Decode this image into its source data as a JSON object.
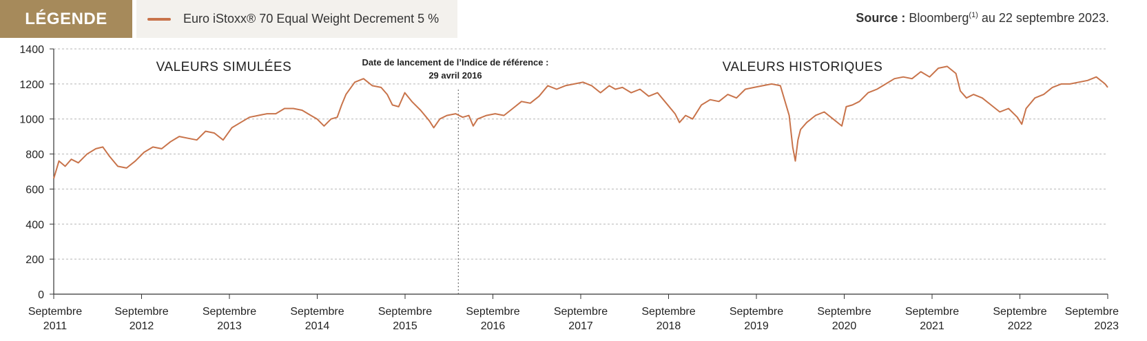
{
  "legend": {
    "heading": "LÉGENDE",
    "color": "#c8734a"
  },
  "source": {
    "label": "Source :",
    "text_before": " Bloomberg",
    "footnote": "(1)",
    "text_after": " au 22 septembre 2023."
  },
  "chart_data": {
    "type": "line",
    "x_tick_labels": [
      [
        "Septembre",
        "2011"
      ],
      [
        "Septembre",
        "2012"
      ],
      [
        "Septembre",
        "2013"
      ],
      [
        "Septembre",
        "2014"
      ],
      [
        "Septembre",
        "2015"
      ],
      [
        "Septembre",
        "2016"
      ],
      [
        "Septembre",
        "2017"
      ],
      [
        "Septembre",
        "2018"
      ],
      [
        "Septembre",
        "2019"
      ],
      [
        "Septembre",
        "2020"
      ],
      [
        "Septembre",
        "2021"
      ],
      [
        "Septembre",
        "2022"
      ],
      [
        "Septembre",
        "2023"
      ]
    ],
    "xlim": [
      2011.72,
      2023.73
    ],
    "ylim": [
      0,
      1400
    ],
    "y_ticks": [
      0,
      200,
      400,
      600,
      800,
      1000,
      1200,
      1400
    ],
    "grid": true,
    "series": [
      {
        "name": "Euro iStoxx® 70 Equal Weight Decrement 5 %",
        "color": "#c8734a",
        "x": [
          2011.72,
          2011.78,
          2011.85,
          2011.92,
          2012.0,
          2012.1,
          2012.2,
          2012.28,
          2012.35,
          2012.45,
          2012.55,
          2012.65,
          2012.75,
          2012.85,
          2012.95,
          2013.05,
          2013.15,
          2013.25,
          2013.35,
          2013.45,
          2013.55,
          2013.65,
          2013.75,
          2013.85,
          2013.95,
          2014.05,
          2014.15,
          2014.25,
          2014.35,
          2014.45,
          2014.55,
          2014.65,
          2014.72,
          2014.8,
          2014.88,
          2014.95,
          2015.0,
          2015.05,
          2015.15,
          2015.25,
          2015.35,
          2015.45,
          2015.52,
          2015.58,
          2015.65,
          2015.72,
          2015.8,
          2015.9,
          2016.0,
          2016.05,
          2016.12,
          2016.2,
          2016.3,
          2016.38,
          2016.45,
          2016.5,
          2016.55,
          2016.65,
          2016.75,
          2016.85,
          2016.95,
          2017.05,
          2017.15,
          2017.25,
          2017.35,
          2017.45,
          2017.55,
          2017.65,
          2017.75,
          2017.85,
          2017.95,
          2018.05,
          2018.12,
          2018.2,
          2018.3,
          2018.4,
          2018.5,
          2018.6,
          2018.7,
          2018.8,
          2018.85,
          2018.92,
          2019.0,
          2019.1,
          2019.2,
          2019.3,
          2019.4,
          2019.5,
          2019.6,
          2019.7,
          2019.8,
          2019.9,
          2020.0,
          2020.1,
          2020.14,
          2020.17,
          2020.2,
          2020.23,
          2020.3,
          2020.4,
          2020.5,
          2020.6,
          2020.7,
          2020.75,
          2020.82,
          2020.9,
          2021.0,
          2021.1,
          2021.2,
          2021.3,
          2021.4,
          2021.5,
          2021.6,
          2021.7,
          2021.8,
          2021.9,
          2022.0,
          2022.05,
          2022.12,
          2022.2,
          2022.3,
          2022.4,
          2022.5,
          2022.6,
          2022.7,
          2022.75,
          2022.8,
          2022.9,
          2023.0,
          2023.1,
          2023.2,
          2023.3,
          2023.4,
          2023.5,
          2023.6,
          2023.7,
          2023.73
        ],
        "values": [
          660,
          760,
          730,
          770,
          750,
          800,
          830,
          840,
          790,
          730,
          720,
          760,
          810,
          840,
          830,
          870,
          900,
          890,
          880,
          930,
          920,
          880,
          950,
          980,
          1010,
          1020,
          1030,
          1030,
          1060,
          1060,
          1050,
          1020,
          1000,
          960,
          1000,
          1010,
          1080,
          1140,
          1210,
          1230,
          1190,
          1180,
          1140,
          1080,
          1070,
          1150,
          1100,
          1050,
          990,
          950,
          1000,
          1020,
          1030,
          1010,
          1020,
          960,
          1000,
          1020,
          1030,
          1020,
          1060,
          1100,
          1090,
          1130,
          1190,
          1170,
          1190,
          1200,
          1210,
          1190,
          1150,
          1190,
          1170,
          1180,
          1150,
          1170,
          1130,
          1150,
          1090,
          1030,
          980,
          1020,
          1000,
          1080,
          1110,
          1100,
          1140,
          1120,
          1170,
          1180,
          1190,
          1200,
          1190,
          1020,
          840,
          760,
          880,
          940,
          980,
          1020,
          1040,
          1000,
          960,
          1070,
          1080,
          1100,
          1150,
          1170,
          1200,
          1230,
          1240,
          1230,
          1270,
          1240,
          1290,
          1300,
          1260,
          1160,
          1120,
          1140,
          1120,
          1080,
          1040,
          1060,
          1010,
          970,
          1060,
          1120,
          1140,
          1180,
          1200,
          1200,
          1210,
          1220,
          1240,
          1200,
          1180
        ]
      }
    ],
    "annotations": {
      "zone_left": "VALEURS SIMULÉES",
      "zone_right": "VALEURS HISTORIQUES",
      "launch_line1": "Date de lancement de l’Indice de référence :",
      "launch_line2": "29 avril 2016",
      "launch_x": 2016.33
    }
  }
}
